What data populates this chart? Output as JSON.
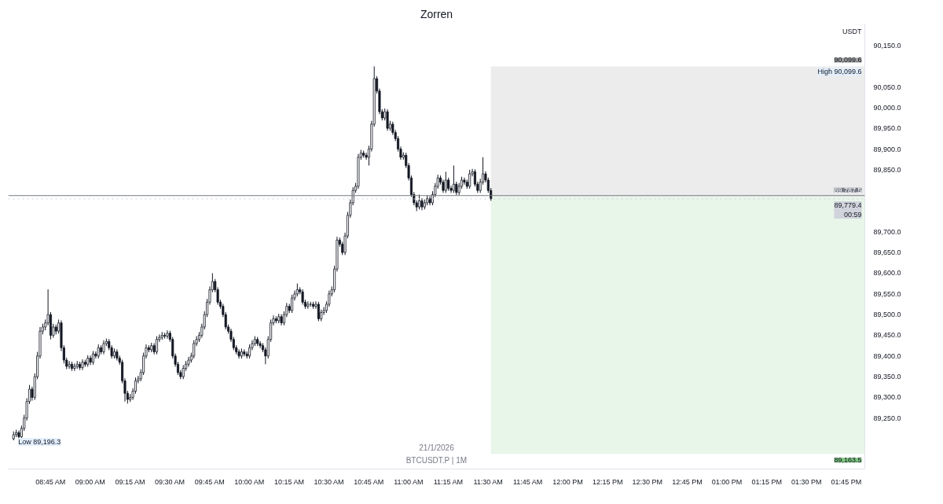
{
  "chart_data": {
    "type": "candlestick",
    "title": "Zorren",
    "ylabel": "USDT",
    "color": "#131722",
    "annotations": [
      "21/1/2026",
      "BTCUSDT.P | 1M",
      {
        "text": "High 90,099.6",
        "y": 90099.6
      },
      {
        "text": "Low 89,196.3",
        "x": "2026-01-21T08:31",
        "y": 89196.3
      }
    ],
    "xlim": [
      "2026-01-21T08:29",
      "2026-01-21T13:52"
    ],
    "xticks": [
      {
        "value": "2026-01-21T08:45",
        "label": "08:45 AM"
      },
      {
        "value": "2026-01-21T09:00",
        "label": "09:00 AM"
      },
      {
        "value": "2026-01-21T09:15",
        "label": "09:15 AM"
      },
      {
        "value": "2026-01-21T09:30",
        "label": "09:30 AM"
      },
      {
        "value": "2026-01-21T09:45",
        "label": "09:45 AM"
      },
      {
        "value": "2026-01-21T10:00",
        "label": "10:00 AM"
      },
      {
        "value": "2026-01-21T10:15",
        "label": "10:15 AM"
      },
      {
        "value": "2026-01-21T10:30",
        "label": "10:30 AM"
      },
      {
        "value": "2026-01-21T10:45",
        "label": "10:45 AM"
      },
      {
        "value": "2026-01-21T11:00",
        "label": "11:00 AM"
      },
      {
        "value": "2026-01-21T11:15",
        "label": "11:15 AM"
      },
      {
        "value": "2026-01-21T11:30",
        "label": "11:30 AM"
      },
      {
        "value": "2026-01-21T11:45",
        "label": "11:45 AM"
      },
      {
        "value": "2026-01-21T12:00",
        "label": "12:00 PM"
      },
      {
        "value": "2026-01-21T12:15",
        "label": "12:15 PM"
      },
      {
        "value": "2026-01-21T12:30",
        "label": "12:30 PM"
      },
      {
        "value": "2026-01-21T12:45",
        "label": "12:45 PM"
      },
      {
        "value": "2026-01-21T13:00",
        "label": "01:00 PM"
      },
      {
        "value": "2026-01-21T13:15",
        "label": "01:15 PM"
      },
      {
        "value": "2026-01-21T13:30",
        "label": "01:30 PM"
      },
      {
        "value": "2026-01-21T13:45",
        "label": "01:45 PM"
      }
    ],
    "ylim": [
      89127,
      90202
    ],
    "yticks": [
      {
        "value": 89250,
        "label": "89,250.0"
      },
      {
        "value": 89300,
        "label": "89,300.0"
      },
      {
        "value": 89350,
        "label": "89,350.0"
      },
      {
        "value": 89400,
        "label": "89,400.0"
      },
      {
        "value": 89450,
        "label": "89,450.0"
      },
      {
        "value": 89500,
        "label": "89,500.0"
      },
      {
        "value": 89550,
        "label": "89,550.0"
      },
      {
        "value": 89600,
        "label": "89,600.0"
      },
      {
        "value": 89650,
        "label": "89,650.0"
      },
      {
        "value": 89700,
        "label": "89,700.0"
      },
      {
        "value": 89850,
        "label": "89,850.0"
      },
      {
        "value": 89900,
        "label": "89,900.0"
      },
      {
        "value": 89950,
        "label": "89,950.0"
      },
      {
        "value": 90000,
        "label": "90,000.0"
      },
      {
        "value": 90050,
        "label": "90,050.0"
      },
      {
        "value": 90150,
        "label": "90,150.0"
      }
    ],
    "ref_lines": [
      {
        "axis": "y",
        "value": 89787.5,
        "label": "89,787.5",
        "color": "#787b86",
        "line_style": "solid"
      },
      {
        "axis": "y",
        "value": 89779.4,
        "label": "89,779.4\n00:59",
        "color": "#d1d4dc",
        "line_style": "dotted"
      }
    ],
    "bands": [
      {
        "axis": "y",
        "from": 89787.5,
        "to": 90099.6,
        "label": "90,099.6",
        "color": "#ececec"
      },
      {
        "axis": "y",
        "from": 89163.5,
        "to": 89787.5,
        "label": "89,163.5",
        "color": "#e8f5e9"
      }
    ],
    "x": [
      "2026-01-21T08:31",
      "2026-01-21T08:32",
      "2026-01-21T08:33",
      "2026-01-21T08:34",
      "2026-01-21T08:35",
      "2026-01-21T08:36",
      "2026-01-21T08:37",
      "2026-01-21T08:38",
      "2026-01-21T08:39",
      "2026-01-21T08:40",
      "2026-01-21T08:41",
      "2026-01-21T08:42",
      "2026-01-21T08:43",
      "2026-01-21T08:44",
      "2026-01-21T08:45",
      "2026-01-21T08:46",
      "2026-01-21T08:47",
      "2026-01-21T08:48",
      "2026-01-21T08:49",
      "2026-01-21T08:50",
      "2026-01-21T08:51",
      "2026-01-21T08:52",
      "2026-01-21T08:53",
      "2026-01-21T08:54",
      "2026-01-21T08:55",
      "2026-01-21T08:56",
      "2026-01-21T08:57",
      "2026-01-21T08:58",
      "2026-01-21T08:59",
      "2026-01-21T09:00",
      "2026-01-21T09:01",
      "2026-01-21T09:02",
      "2026-01-21T09:03",
      "2026-01-21T09:04",
      "2026-01-21T09:05",
      "2026-01-21T09:06",
      "2026-01-21T09:07",
      "2026-01-21T09:08",
      "2026-01-21T09:09",
      "2026-01-21T09:10",
      "2026-01-21T09:11",
      "2026-01-21T09:12",
      "2026-01-21T09:13",
      "2026-01-21T09:14",
      "2026-01-21T09:15",
      "2026-01-21T09:16",
      "2026-01-21T09:17",
      "2026-01-21T09:18",
      "2026-01-21T09:19",
      "2026-01-21T09:20",
      "2026-01-21T09:21",
      "2026-01-21T09:22",
      "2026-01-21T09:23",
      "2026-01-21T09:24",
      "2026-01-21T09:25",
      "2026-01-21T09:26",
      "2026-01-21T09:27",
      "2026-01-21T09:28",
      "2026-01-21T09:29",
      "2026-01-21T09:30",
      "2026-01-21T09:31",
      "2026-01-21T09:32",
      "2026-01-21T09:33",
      "2026-01-21T09:34",
      "2026-01-21T09:35",
      "2026-01-21T09:36",
      "2026-01-21T09:37",
      "2026-01-21T09:38",
      "2026-01-21T09:39",
      "2026-01-21T09:40",
      "2026-01-21T09:41",
      "2026-01-21T09:42",
      "2026-01-21T09:43",
      "2026-01-21T09:44",
      "2026-01-21T09:45",
      "2026-01-21T09:46",
      "2026-01-21T09:47",
      "2026-01-21T09:48",
      "2026-01-21T09:49",
      "2026-01-21T09:50",
      "2026-01-21T09:51",
      "2026-01-21T09:52",
      "2026-01-21T09:53",
      "2026-01-21T09:54",
      "2026-01-21T09:55",
      "2026-01-21T09:56",
      "2026-01-21T09:57",
      "2026-01-21T09:58",
      "2026-01-21T09:59",
      "2026-01-21T10:00",
      "2026-01-21T10:01",
      "2026-01-21T10:02",
      "2026-01-21T10:03",
      "2026-01-21T10:04",
      "2026-01-21T10:05",
      "2026-01-21T10:06",
      "2026-01-21T10:07",
      "2026-01-21T10:08",
      "2026-01-21T10:09",
      "2026-01-21T10:10",
      "2026-01-21T10:11",
      "2026-01-21T10:12",
      "2026-01-21T10:13",
      "2026-01-21T10:14",
      "2026-01-21T10:15",
      "2026-01-21T10:16",
      "2026-01-21T10:17",
      "2026-01-21T10:18",
      "2026-01-21T10:19",
      "2026-01-21T10:20",
      "2026-01-21T10:21",
      "2026-01-21T10:22",
      "2026-01-21T10:23",
      "2026-01-21T10:24",
      "2026-01-21T10:25",
      "2026-01-21T10:26",
      "2026-01-21T10:27",
      "2026-01-21T10:28",
      "2026-01-21T10:29",
      "2026-01-21T10:30",
      "2026-01-21T10:31",
      "2026-01-21T10:32",
      "2026-01-21T10:33",
      "2026-01-21T10:34",
      "2026-01-21T10:35",
      "2026-01-21T10:36",
      "2026-01-21T10:37",
      "2026-01-21T10:38",
      "2026-01-21T10:39",
      "2026-01-21T10:40",
      "2026-01-21T10:41",
      "2026-01-21T10:42",
      "2026-01-21T10:43",
      "2026-01-21T10:44",
      "2026-01-21T10:45",
      "2026-01-21T10:46",
      "2026-01-21T10:47",
      "2026-01-21T10:48",
      "2026-01-21T10:49",
      "2026-01-21T10:50",
      "2026-01-21T10:51",
      "2026-01-21T10:52",
      "2026-01-21T10:53",
      "2026-01-21T10:54",
      "2026-01-21T10:55",
      "2026-01-21T10:56",
      "2026-01-21T10:57",
      "2026-01-21T10:58",
      "2026-01-21T10:59",
      "2026-01-21T11:00",
      "2026-01-21T11:01",
      "2026-01-21T11:02",
      "2026-01-21T11:03",
      "2026-01-21T11:04",
      "2026-01-21T11:05",
      "2026-01-21T11:06",
      "2026-01-21T11:07",
      "2026-01-21T11:08",
      "2026-01-21T11:09",
      "2026-01-21T11:10",
      "2026-01-21T11:11",
      "2026-01-21T11:12",
      "2026-01-21T11:13",
      "2026-01-21T11:14",
      "2026-01-21T11:15",
      "2026-01-21T11:16",
      "2026-01-21T11:17",
      "2026-01-21T11:18",
      "2026-01-21T11:19",
      "2026-01-21T11:20",
      "2026-01-21T11:21",
      "2026-01-21T11:22",
      "2026-01-21T11:23",
      "2026-01-21T11:24",
      "2026-01-21T11:25",
      "2026-01-21T11:26",
      "2026-01-21T11:27",
      "2026-01-21T11:28",
      "2026-01-21T11:29",
      "2026-01-21T11:30",
      "2026-01-21T11:31"
    ],
    "ohlc": [
      [
        89200,
        89218,
        89196.3,
        89210
      ],
      [
        89210,
        89222,
        89204,
        89215
      ],
      [
        89215,
        89220,
        89199,
        89205
      ],
      [
        89205,
        89232,
        89200,
        89225
      ],
      [
        89225,
        89258,
        89219,
        89250
      ],
      [
        89250,
        89298,
        89244,
        89290
      ],
      [
        89290,
        89330,
        89284,
        89320
      ],
      [
        89320,
        89326,
        89292,
        89300
      ],
      [
        89300,
        89358,
        89294,
        89350
      ],
      [
        89350,
        89410,
        89344,
        89400
      ],
      [
        89400,
        89470,
        89394,
        89460
      ],
      [
        89460,
        89478,
        89452,
        89470
      ],
      [
        89470,
        89488,
        89462,
        89480
      ],
      [
        89480,
        89561,
        89474,
        89500
      ],
      [
        89500,
        89506,
        89440,
        89450
      ],
      [
        89450,
        89478,
        89444,
        89470
      ],
      [
        89470,
        89476,
        89452,
        89460
      ],
      [
        89460,
        89488,
        89454,
        89480
      ],
      [
        89480,
        89486,
        89412,
        89420
      ],
      [
        89420,
        89426,
        89382,
        89390
      ],
      [
        89390,
        89396,
        89368,
        89375
      ],
      [
        89375,
        89388,
        89369,
        89380
      ],
      [
        89380,
        89386,
        89364,
        89370
      ],
      [
        89370,
        89382,
        89364,
        89375
      ],
      [
        89375,
        89388,
        89369,
        89380
      ],
      [
        89380,
        89386,
        89366,
        89372
      ],
      [
        89372,
        89392,
        89366,
        89385
      ],
      [
        89385,
        89391,
        89374,
        89380
      ],
      [
        89380,
        89402,
        89374,
        89395
      ],
      [
        89395,
        89401,
        89378,
        89385
      ],
      [
        89385,
        89412,
        89379,
        89405
      ],
      [
        89405,
        89411,
        89394,
        89400
      ],
      [
        89400,
        89428,
        89394,
        89420
      ],
      [
        89420,
        89426,
        89404,
        89410
      ],
      [
        89410,
        89438,
        89404,
        89430
      ],
      [
        89430,
        89442,
        89424,
        89435
      ],
      [
        89435,
        89441,
        89414,
        89420
      ],
      [
        89420,
        89426,
        89394,
        89400
      ],
      [
        89400,
        89418,
        89394,
        89410
      ],
      [
        89410,
        89416,
        89389,
        89395
      ],
      [
        89395,
        89401,
        89379,
        89385
      ],
      [
        89385,
        89391,
        89334,
        89340
      ],
      [
        89340,
        89346,
        89290,
        89310
      ],
      [
        89310,
        89316,
        89285,
        89295
      ],
      [
        89295,
        89308,
        89289,
        89300
      ],
      [
        89300,
        89322,
        89294,
        89315
      ],
      [
        89315,
        89348,
        89309,
        89340
      ],
      [
        89340,
        89352,
        89334,
        89345
      ],
      [
        89345,
        89368,
        89339,
        89360
      ],
      [
        89360,
        89408,
        89354,
        89400
      ],
      [
        89400,
        89428,
        89394,
        89420
      ],
      [
        89420,
        89426,
        89409,
        89415
      ],
      [
        89415,
        89432,
        89409,
        89425
      ],
      [
        89425,
        89431,
        89404,
        89410
      ],
      [
        89410,
        89448,
        89404,
        89440
      ],
      [
        89440,
        89452,
        89434,
        89445
      ],
      [
        89445,
        89458,
        89439,
        89450
      ],
      [
        89450,
        89456,
        89442,
        89448
      ],
      [
        89448,
        89462,
        89442,
        89455
      ],
      [
        89455,
        89461,
        89434,
        89440
      ],
      [
        89440,
        89446,
        89394,
        89400
      ],
      [
        89400,
        89406,
        89374,
        89380
      ],
      [
        89380,
        89386,
        89354,
        89360
      ],
      [
        89360,
        89366,
        89344,
        89350
      ],
      [
        89350,
        89378,
        89344,
        89370
      ],
      [
        89370,
        89388,
        89364,
        89380
      ],
      [
        89380,
        89398,
        89374,
        89390
      ],
      [
        89390,
        89408,
        89384,
        89400
      ],
      [
        89400,
        89438,
        89394,
        89430
      ],
      [
        89430,
        89448,
        89424,
        89440
      ],
      [
        89440,
        89458,
        89434,
        89450
      ],
      [
        89450,
        89478,
        89444,
        89470
      ],
      [
        89470,
        89508,
        89464,
        89500
      ],
      [
        89500,
        89538,
        89494,
        89530
      ],
      [
        89530,
        89568,
        89524,
        89560
      ],
      [
        89560,
        89600,
        89554,
        89580
      ],
      [
        89580,
        89586,
        89554,
        89560
      ],
      [
        89560,
        89566,
        89524,
        89530
      ],
      [
        89530,
        89536,
        89514,
        89520
      ],
      [
        89520,
        89526,
        89494,
        89500
      ],
      [
        89500,
        89506,
        89464,
        89470
      ],
      [
        89470,
        89476,
        89454,
        89460
      ],
      [
        89460,
        89466,
        89434,
        89440
      ],
      [
        89440,
        89446,
        89414,
        89420
      ],
      [
        89420,
        89426,
        89404,
        89410
      ],
      [
        89410,
        89416,
        89394,
        89400
      ],
      [
        89400,
        89418,
        89394,
        89410
      ],
      [
        89410,
        89416,
        89399,
        89405
      ],
      [
        89405,
        89411,
        89394,
        89400
      ],
      [
        89400,
        89428,
        89394,
        89420
      ],
      [
        89420,
        89438,
        89414,
        89430
      ],
      [
        89430,
        89448,
        89424,
        89440
      ],
      [
        89440,
        89446,
        89424,
        89430
      ],
      [
        89430,
        89436,
        89419,
        89425
      ],
      [
        89425,
        89431,
        89409,
        89415
      ],
      [
        89415,
        89421,
        89380,
        89400
      ],
      [
        89400,
        89448,
        89394,
        89440
      ],
      [
        89440,
        89488,
        89434,
        89480
      ],
      [
        89480,
        89498,
        89474,
        89490
      ],
      [
        89490,
        89496,
        89479,
        89485
      ],
      [
        89485,
        89502,
        89479,
        89495
      ],
      [
        89495,
        89501,
        89474,
        89480
      ],
      [
        89480,
        89508,
        89474,
        89500
      ],
      [
        89500,
        89528,
        89494,
        89520
      ],
      [
        89520,
        89526,
        89504,
        89510
      ],
      [
        89510,
        89548,
        89504,
        89540
      ],
      [
        89540,
        89558,
        89534,
        89550
      ],
      [
        89550,
        89575,
        89544,
        89560
      ],
      [
        89560,
        89566,
        89549,
        89555
      ],
      [
        89555,
        89561,
        89524,
        89530
      ],
      [
        89530,
        89536,
        89514,
        89520
      ],
      [
        89520,
        89532,
        89514,
        89525
      ],
      [
        89525,
        89531,
        89519,
        89525
      ],
      [
        89525,
        89531,
        89514,
        89520
      ],
      [
        89520,
        89532,
        89514,
        89525
      ],
      [
        89525,
        89531,
        89484,
        89490
      ],
      [
        89490,
        89512,
        89484,
        89505
      ],
      [
        89505,
        89518,
        89499,
        89510
      ],
      [
        89510,
        89532,
        89504,
        89525
      ],
      [
        89525,
        89558,
        89519,
        89550
      ],
      [
        89550,
        89568,
        89544,
        89560
      ],
      [
        89560,
        89618,
        89554,
        89610
      ],
      [
        89610,
        89688,
        89604,
        89680
      ],
      [
        89680,
        89686,
        89664,
        89670
      ],
      [
        89670,
        89676,
        89644,
        89650
      ],
      [
        89650,
        89698,
        89644,
        89690
      ],
      [
        89690,
        89748,
        89684,
        89740
      ],
      [
        89740,
        89778,
        89734,
        89770
      ],
      [
        89770,
        89808,
        89764,
        89800
      ],
      [
        89800,
        89818,
        89794,
        89810
      ],
      [
        89810,
        89888,
        89804,
        89880
      ],
      [
        89880,
        89898,
        89874,
        89890
      ],
      [
        89890,
        89896,
        89879,
        89885
      ],
      [
        89885,
        89891,
        89874,
        89880
      ],
      [
        89880,
        89908,
        89860,
        89900
      ],
      [
        89900,
        89968,
        89894,
        89960
      ],
      [
        89960,
        90099.6,
        89954,
        90070
      ],
      [
        90070,
        90076,
        90034,
        90040
      ],
      [
        90040,
        90046,
        89984,
        89990
      ],
      [
        89990,
        89996,
        89969,
        89975
      ],
      [
        89975,
        89998,
        89969,
        89990
      ],
      [
        89990,
        89996,
        89944,
        89950
      ],
      [
        89950,
        89968,
        89944,
        89960
      ],
      [
        89960,
        89966,
        89934,
        89940
      ],
      [
        89940,
        89946,
        89919,
        89925
      ],
      [
        89925,
        89931,
        89894,
        89900
      ],
      [
        89900,
        89906,
        89874,
        89880
      ],
      [
        89880,
        89892,
        89874,
        89885
      ],
      [
        89885,
        89891,
        89854,
        89860
      ],
      [
        89860,
        89866,
        89824,
        89830
      ],
      [
        89830,
        89836,
        89784,
        89790
      ],
      [
        89790,
        89796,
        89764,
        89770
      ],
      [
        89770,
        89776,
        89750,
        89760
      ],
      [
        89760,
        89790,
        89754,
        89775
      ],
      [
        89775,
        89781,
        89752,
        89760
      ],
      [
        89760,
        89778,
        89754,
        89770
      ],
      [
        89770,
        89788,
        89764,
        89780
      ],
      [
        89780,
        89786,
        89764,
        89770
      ],
      [
        89770,
        89798,
        89764,
        89790
      ],
      [
        89790,
        89818,
        89784,
        89810
      ],
      [
        89810,
        89838,
        89804,
        89830
      ],
      [
        89830,
        89836,
        89814,
        89820
      ],
      [
        89820,
        89826,
        89794,
        89800
      ],
      [
        89800,
        89845,
        89794,
        89825
      ],
      [
        89825,
        89831,
        89799,
        89805
      ],
      [
        89805,
        89811,
        89794,
        89800
      ],
      [
        89800,
        89860,
        89794,
        89815
      ],
      [
        89815,
        89821,
        89789,
        89795
      ],
      [
        89795,
        89818,
        89789,
        89810
      ],
      [
        89810,
        89833,
        89804,
        89825
      ],
      [
        89825,
        89831,
        89814,
        89820
      ],
      [
        89820,
        89826,
        89804,
        89810
      ],
      [
        89810,
        89850,
        89804,
        89840
      ],
      [
        89840,
        89852,
        89834,
        89845
      ],
      [
        89845,
        89851,
        89809,
        89815
      ],
      [
        89815,
        89821,
        89794,
        89800
      ],
      [
        89800,
        89828,
        89794,
        89820
      ],
      [
        89820,
        89880,
        89814,
        89840
      ],
      [
        89840,
        89846,
        89819,
        89825
      ],
      [
        89825,
        89831,
        89794,
        89800
      ],
      [
        89800,
        89806,
        89775,
        89779.4
      ]
    ]
  }
}
